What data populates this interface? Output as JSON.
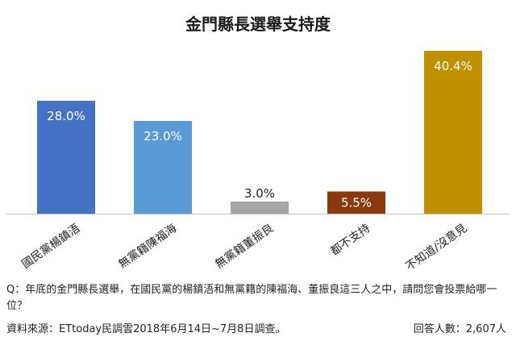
{
  "chart_data": {
    "type": "bar",
    "title": "金門縣長選舉支持度",
    "categories": [
      "國民黨楊鎮浯",
      "無黨籍陳福海",
      "無黨籍董振良",
      "都不支持",
      "不知道/沒意見"
    ],
    "values": [
      28.0,
      23.0,
      3.0,
      5.5,
      40.4
    ],
    "value_labels": [
      "28.0%",
      "23.0%",
      "3.0%",
      "5.5%",
      "40.4%"
    ],
    "colors": [
      "#4472C4",
      "#5B9BD5",
      "#A5A5A5",
      "#8B3A0F",
      "#BF9000"
    ],
    "ylim": [
      0,
      45
    ],
    "grid": false,
    "xlabel": "",
    "ylabel": ""
  },
  "note": {
    "question": "Q：年底的金門縣長選舉，在國民黨的楊鎮浯和無黨籍的陳福海、董振良這三人之中，請問您會投票給哪一位？",
    "source": "資料來源：ETtoday民調雲2018年6月14日~7月8日調查。",
    "respondents": "回答人數：2,607人"
  }
}
